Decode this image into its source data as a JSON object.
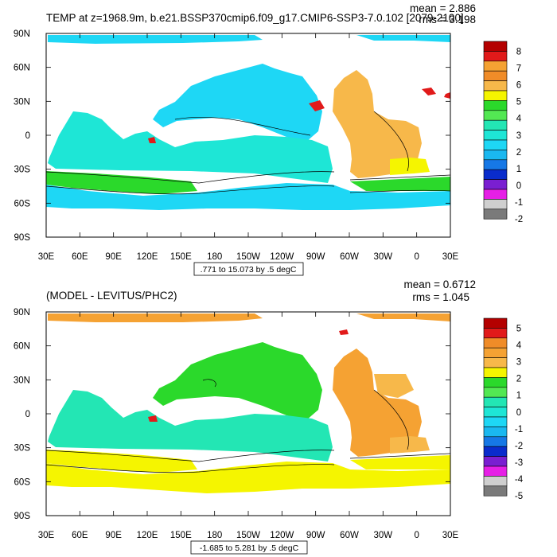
{
  "chart_data": [
    {
      "type": "heatmap",
      "title": "TEMP at z=1968.9m, b.e21.BSSP370cmip6.f09_g17.CMIP6-SSP3-7.0.102 [2079-2100]",
      "stats": {
        "mean": "mean = 2.886",
        "rms": "rms = 3.198"
      },
      "range_label": ".771 to 15.073 by .5 degC",
      "x_ticks": [
        "30E",
        "60E",
        "90E",
        "120E",
        "150E",
        "180",
        "150W",
        "120W",
        "90W",
        "60W",
        "30W",
        "0",
        "30E"
      ],
      "y_ticks": [
        "90N",
        "60N",
        "30N",
        "0",
        "30S",
        "60S",
        "90S"
      ],
      "colorbar": {
        "labels": [
          "8",
          "7",
          "6",
          "5",
          "4",
          "3",
          "2",
          "1",
          "0",
          "-1",
          "-2"
        ],
        "colors": [
          "#b40000",
          "#e11a1a",
          "#f5a233",
          "#f08c28",
          "#f7b84a",
          "#f5f500",
          "#2bd92b",
          "#53e853",
          "#23e6b4",
          "#1ee6d6",
          "#1ed7f5",
          "#1ab8f0",
          "#1678e6",
          "#0a2ccc",
          "#7a1fd1",
          "#e61fe6",
          "#cfcfcf",
          "#7a7a7a"
        ]
      },
      "regions": {
        "arctic": "#1ed7f5",
        "north_pacific": "#1ed7f5",
        "indian": "#1ee6d6",
        "south_band": "#2bd92b",
        "southern": "#1ed7f5",
        "atlantic": "#f7b84a",
        "south_atlantic": "#f5f500",
        "mediterranean": "#e11a1a"
      }
    },
    {
      "type": "heatmap",
      "title": "(MODEL - LEVITUS/PHC2)",
      "stats": {
        "mean": "mean = 0.6712",
        "rms": "rms = 1.045"
      },
      "range_label": "-1.685 to 5.281 by .5 degC",
      "x_ticks": [
        "30E",
        "60E",
        "90E",
        "120E",
        "150E",
        "180",
        "150W",
        "120W",
        "90W",
        "60W",
        "30W",
        "0",
        "30E"
      ],
      "y_ticks": [
        "90N",
        "60N",
        "30N",
        "0",
        "30S",
        "60S",
        "90S"
      ],
      "colorbar": {
        "labels": [
          "5",
          "4",
          "3",
          "2",
          "1",
          "0",
          "-1",
          "-2",
          "-3",
          "-4",
          "-5"
        ],
        "colors": [
          "#b40000",
          "#e11a1a",
          "#f08c28",
          "#f5a233",
          "#f7b84a",
          "#f5f500",
          "#2bd92b",
          "#53e853",
          "#23e6b4",
          "#1ee6d6",
          "#1ed7f5",
          "#1ab8f0",
          "#1678e6",
          "#0a2ccc",
          "#7a1fd1",
          "#e61fe6",
          "#cfcfcf",
          "#7a7a7a"
        ]
      },
      "regions": {
        "arctic": "#f5a233",
        "north_pacific": "#2bd92b",
        "indian": "#23e6b4",
        "south_band": "#f5f500",
        "southern": "#f5f500",
        "atlantic": "#f5a233",
        "south_atlantic": "#f7b84a",
        "mediterranean": "#e11a1a"
      }
    }
  ]
}
